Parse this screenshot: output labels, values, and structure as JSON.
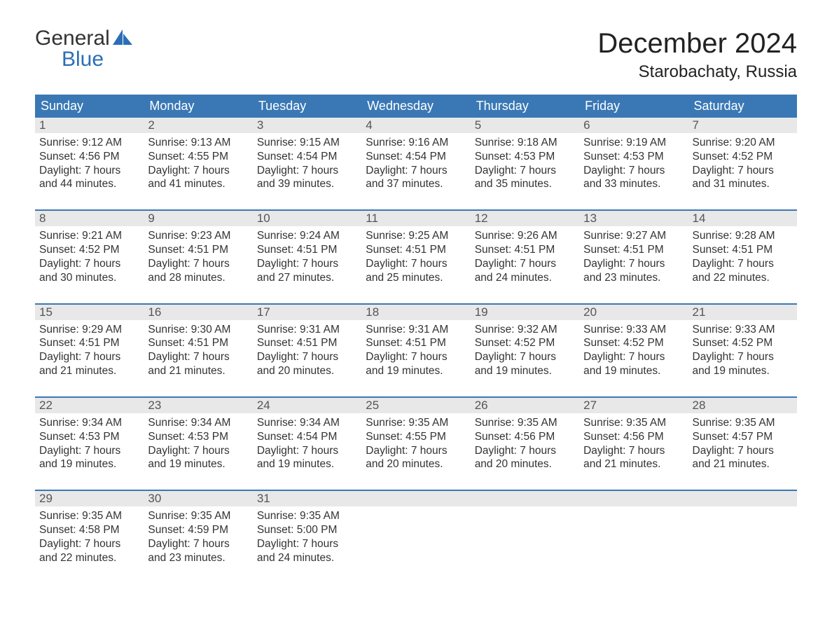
{
  "logo": {
    "text_top": "General",
    "text_bottom": "Blue",
    "icon_color": "#2c6eb5"
  },
  "title": {
    "month": "December 2024",
    "location": "Starobachaty, Russia"
  },
  "colors": {
    "header_bg": "#3a78b5",
    "header_text": "#ffffff",
    "daynum_bg": "#e8e8e8",
    "daynum_text": "#555555",
    "body_text": "#333333",
    "week_border": "#3a78b5",
    "page_bg": "#ffffff"
  },
  "weekdays": [
    "Sunday",
    "Monday",
    "Tuesday",
    "Wednesday",
    "Thursday",
    "Friday",
    "Saturday"
  ],
  "labels": {
    "sunrise": "Sunrise:",
    "sunset": "Sunset:",
    "daylight": "Daylight:"
  },
  "days": [
    {
      "n": 1,
      "sunrise": "9:12 AM",
      "sunset": "4:56 PM",
      "dl": "7 hours and 44 minutes."
    },
    {
      "n": 2,
      "sunrise": "9:13 AM",
      "sunset": "4:55 PM",
      "dl": "7 hours and 41 minutes."
    },
    {
      "n": 3,
      "sunrise": "9:15 AM",
      "sunset": "4:54 PM",
      "dl": "7 hours and 39 minutes."
    },
    {
      "n": 4,
      "sunrise": "9:16 AM",
      "sunset": "4:54 PM",
      "dl": "7 hours and 37 minutes."
    },
    {
      "n": 5,
      "sunrise": "9:18 AM",
      "sunset": "4:53 PM",
      "dl": "7 hours and 35 minutes."
    },
    {
      "n": 6,
      "sunrise": "9:19 AM",
      "sunset": "4:53 PM",
      "dl": "7 hours and 33 minutes."
    },
    {
      "n": 7,
      "sunrise": "9:20 AM",
      "sunset": "4:52 PM",
      "dl": "7 hours and 31 minutes."
    },
    {
      "n": 8,
      "sunrise": "9:21 AM",
      "sunset": "4:52 PM",
      "dl": "7 hours and 30 minutes."
    },
    {
      "n": 9,
      "sunrise": "9:23 AM",
      "sunset": "4:51 PM",
      "dl": "7 hours and 28 minutes."
    },
    {
      "n": 10,
      "sunrise": "9:24 AM",
      "sunset": "4:51 PM",
      "dl": "7 hours and 27 minutes."
    },
    {
      "n": 11,
      "sunrise": "9:25 AM",
      "sunset": "4:51 PM",
      "dl": "7 hours and 25 minutes."
    },
    {
      "n": 12,
      "sunrise": "9:26 AM",
      "sunset": "4:51 PM",
      "dl": "7 hours and 24 minutes."
    },
    {
      "n": 13,
      "sunrise": "9:27 AM",
      "sunset": "4:51 PM",
      "dl": "7 hours and 23 minutes."
    },
    {
      "n": 14,
      "sunrise": "9:28 AM",
      "sunset": "4:51 PM",
      "dl": "7 hours and 22 minutes."
    },
    {
      "n": 15,
      "sunrise": "9:29 AM",
      "sunset": "4:51 PM",
      "dl": "7 hours and 21 minutes."
    },
    {
      "n": 16,
      "sunrise": "9:30 AM",
      "sunset": "4:51 PM",
      "dl": "7 hours and 21 minutes."
    },
    {
      "n": 17,
      "sunrise": "9:31 AM",
      "sunset": "4:51 PM",
      "dl": "7 hours and 20 minutes."
    },
    {
      "n": 18,
      "sunrise": "9:31 AM",
      "sunset": "4:51 PM",
      "dl": "7 hours and 19 minutes."
    },
    {
      "n": 19,
      "sunrise": "9:32 AM",
      "sunset": "4:52 PM",
      "dl": "7 hours and 19 minutes."
    },
    {
      "n": 20,
      "sunrise": "9:33 AM",
      "sunset": "4:52 PM",
      "dl": "7 hours and 19 minutes."
    },
    {
      "n": 21,
      "sunrise": "9:33 AM",
      "sunset": "4:52 PM",
      "dl": "7 hours and 19 minutes."
    },
    {
      "n": 22,
      "sunrise": "9:34 AM",
      "sunset": "4:53 PM",
      "dl": "7 hours and 19 minutes."
    },
    {
      "n": 23,
      "sunrise": "9:34 AM",
      "sunset": "4:53 PM",
      "dl": "7 hours and 19 minutes."
    },
    {
      "n": 24,
      "sunrise": "9:34 AM",
      "sunset": "4:54 PM",
      "dl": "7 hours and 19 minutes."
    },
    {
      "n": 25,
      "sunrise": "9:35 AM",
      "sunset": "4:55 PM",
      "dl": "7 hours and 20 minutes."
    },
    {
      "n": 26,
      "sunrise": "9:35 AM",
      "sunset": "4:56 PM",
      "dl": "7 hours and 20 minutes."
    },
    {
      "n": 27,
      "sunrise": "9:35 AM",
      "sunset": "4:56 PM",
      "dl": "7 hours and 21 minutes."
    },
    {
      "n": 28,
      "sunrise": "9:35 AM",
      "sunset": "4:57 PM",
      "dl": "7 hours and 21 minutes."
    },
    {
      "n": 29,
      "sunrise": "9:35 AM",
      "sunset": "4:58 PM",
      "dl": "7 hours and 22 minutes."
    },
    {
      "n": 30,
      "sunrise": "9:35 AM",
      "sunset": "4:59 PM",
      "dl": "7 hours and 23 minutes."
    },
    {
      "n": 31,
      "sunrise": "9:35 AM",
      "sunset": "5:00 PM",
      "dl": "7 hours and 24 minutes."
    }
  ],
  "layout": {
    "columns": 7,
    "rows": 5,
    "trailing_empty": 4
  }
}
